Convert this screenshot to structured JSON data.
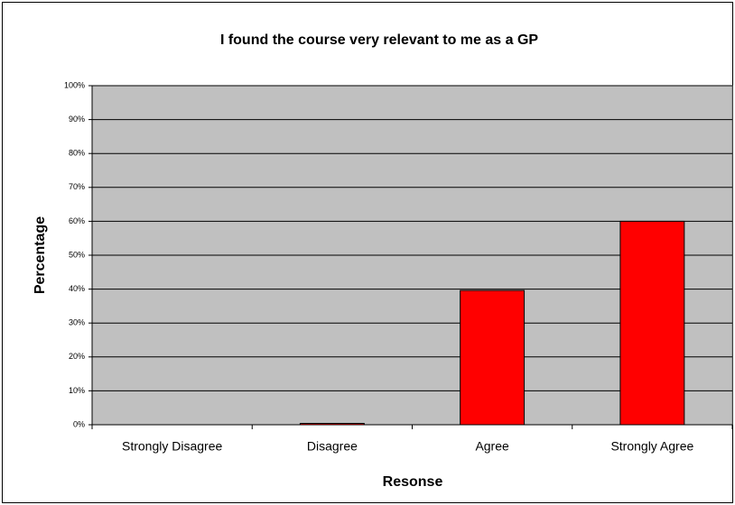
{
  "chart_data": {
    "type": "bar",
    "title": "I found the course very relevant to me as a GP",
    "x_label": "Resonse",
    "y_label": "Percentage",
    "categories": [
      "Strongly Disagree",
      "Disagree",
      "Agree",
      "Strongly Agree"
    ],
    "values": [
      0,
      0.4,
      39.6,
      60
    ],
    "color": "#ff0000",
    "ylim": [
      0,
      100
    ],
    "yticks": [
      {
        "value": 0,
        "label": "0%"
      },
      {
        "value": 10,
        "label": "10%"
      },
      {
        "value": 20,
        "label": "20%"
      },
      {
        "value": 30,
        "label": "30%"
      },
      {
        "value": 40,
        "label": "40%"
      },
      {
        "value": 50,
        "label": "50%"
      },
      {
        "value": 60,
        "label": "60%"
      },
      {
        "value": 70,
        "label": "70%"
      },
      {
        "value": 80,
        "label": "80%"
      },
      {
        "value": 90,
        "label": "90%"
      },
      {
        "value": 100,
        "label": "100%"
      }
    ],
    "grid": true,
    "plot_background": "#c0c0c0"
  }
}
